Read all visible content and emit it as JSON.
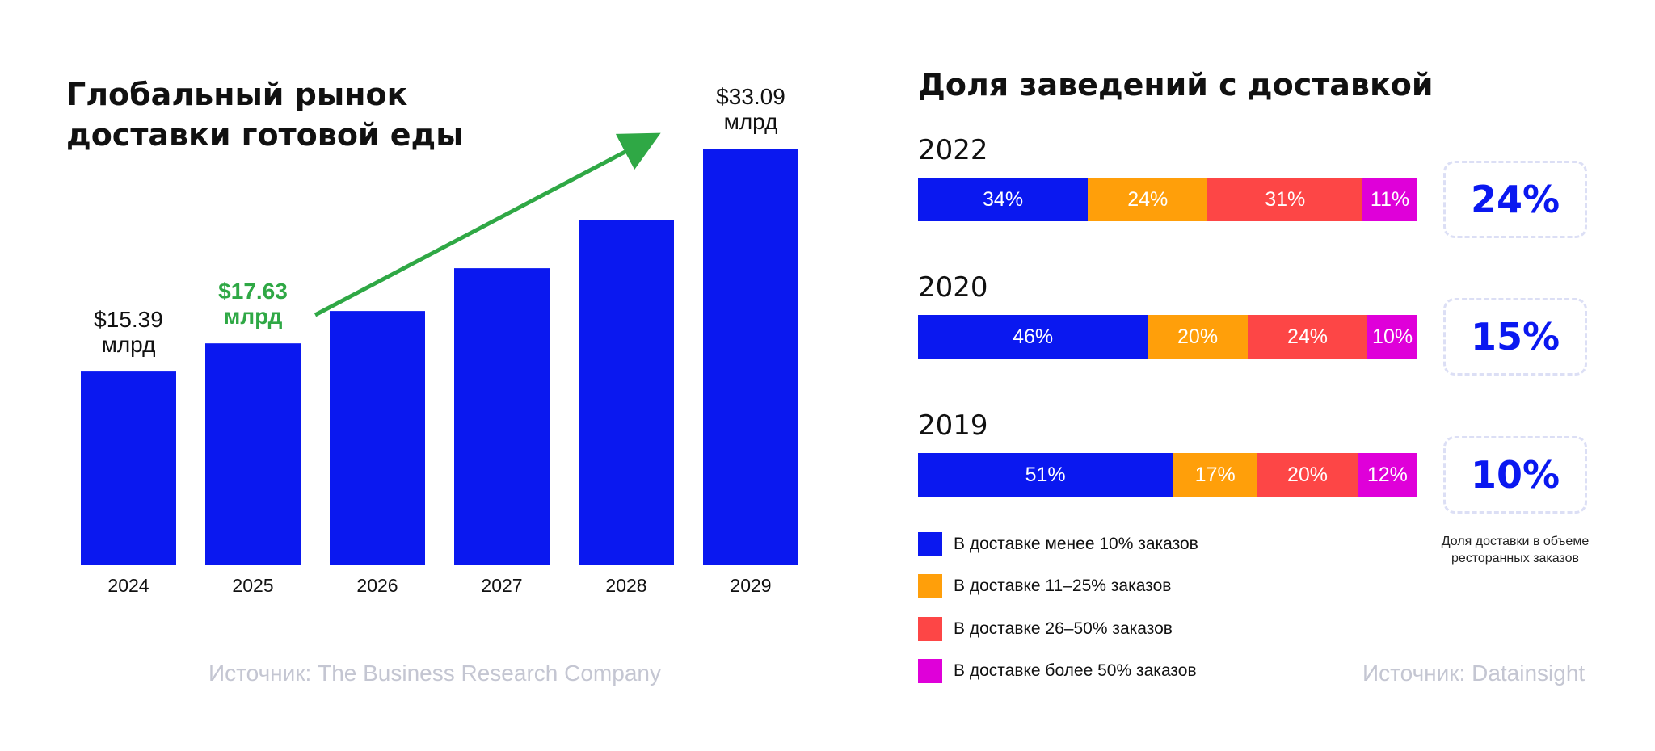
{
  "colors": {
    "blue": "#0a18f0",
    "orange": "#ff9f0a",
    "red": "#fd4646",
    "magenta": "#df00d9",
    "green": "#2fa845",
    "source_gray": "#c4c6d2"
  },
  "left": {
    "title": "Глобальный рынок доставки готовой еды",
    "source": "Источник: The Business Research Company"
  },
  "right": {
    "title": "Доля заведений с доставкой",
    "source": "Источник: Datainsight",
    "box_note": "Доля доставки в объеме ресторанных заказов"
  },
  "chart_data": [
    {
      "type": "bar",
      "title": "Глобальный рынок доставки готовой еды",
      "categories": [
        "2024",
        "2025",
        "2026",
        "2027",
        "2028",
        "2029"
      ],
      "values": [
        15.39,
        17.63,
        20.2,
        23.6,
        27.4,
        33.09
      ],
      "ylim": [
        0,
        34
      ],
      "data_labels": [
        {
          "category": "2024",
          "line1": "$15.39",
          "line2": "млрд",
          "style": "dark"
        },
        {
          "category": "2025",
          "line1": "$17.63",
          "line2": "млрд",
          "style": "green"
        },
        {
          "category": "2029",
          "line1": "$33.09",
          "line2": "млрд",
          "style": "dark"
        }
      ],
      "trend_arrow": {
        "from_category": "2026",
        "to_category": "2029",
        "color": "#2fa845"
      }
    },
    {
      "type": "bar",
      "subtype": "stacked-horizontal-100",
      "title": "Доля заведений с доставкой",
      "rows": [
        {
          "year": "2022",
          "values": [
            34,
            24,
            31,
            11
          ],
          "labels": [
            "34%",
            "24%",
            "31%",
            "11%"
          ],
          "delivery_share": "24%"
        },
        {
          "year": "2020",
          "values": [
            46,
            20,
            24,
            10
          ],
          "labels": [
            "46%",
            "20%",
            "24%",
            "10%"
          ],
          "delivery_share": "15%"
        },
        {
          "year": "2019",
          "values": [
            51,
            17,
            20,
            12
          ],
          "labels": [
            "51%",
            "17%",
            "20%",
            "12%"
          ],
          "delivery_share": "10%"
        }
      ],
      "legend": [
        {
          "label": "В доставке менее 10% заказов",
          "color": "#0a18f0"
        },
        {
          "label": "В доставке 11–25% заказов",
          "color": "#ff9f0a"
        },
        {
          "label": "В доставке 26–50% заказов",
          "color": "#fd4646"
        },
        {
          "label": "В доставке более 50% заказов",
          "color": "#df00d9"
        }
      ]
    }
  ]
}
